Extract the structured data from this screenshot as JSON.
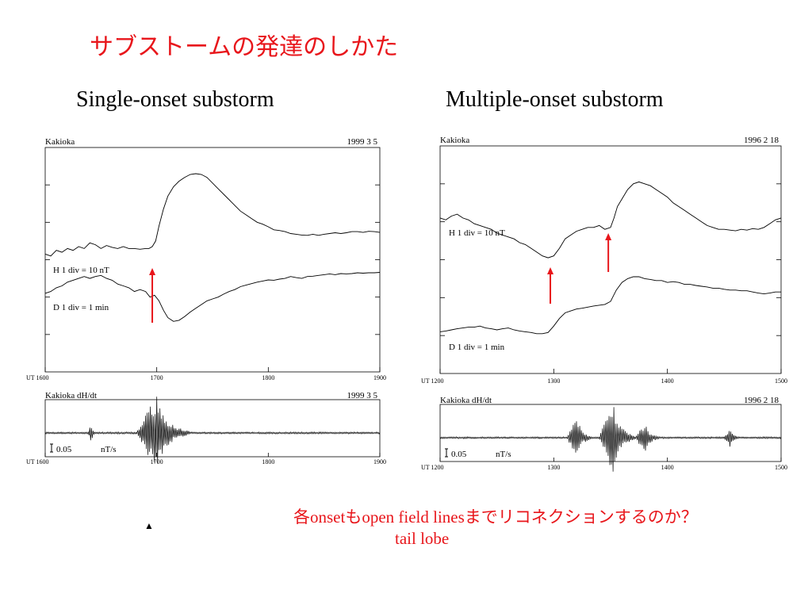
{
  "slide": {
    "title": "サブストームの発達のしかた",
    "note_line1": "各onsetもopen field linesまでリコネクションするのか？",
    "note_line2": "tail lobe",
    "marker": "▲"
  },
  "colors": {
    "onset_arrow": "#e8161b",
    "title": "#e8161b",
    "trace": "#000000"
  },
  "chart_data": [
    {
      "id": "single-onset",
      "type": "line",
      "title": "Single-onset substorm",
      "station": "Kakioka",
      "date": "1999    3    5",
      "x_axis_prefix": "UT",
      "x_ticks": [
        "1600",
        "1700",
        "1800",
        "1900"
      ],
      "xlim": [
        1600,
        1900
      ],
      "ylim": [
        0,
        6
      ],
      "series": [
        {
          "name": "H",
          "label": "H   1 div = 10 nT",
          "x": [
            1600,
            1605,
            1610,
            1615,
            1620,
            1625,
            1630,
            1635,
            1640,
            1645,
            1650,
            1655,
            1660,
            1665,
            1670,
            1675,
            1680,
            1685,
            1690,
            1693,
            1696,
            1699,
            1702,
            1706,
            1710,
            1715,
            1720,
            1725,
            1730,
            1735,
            1740,
            1745,
            1750,
            1755,
            1760,
            1765,
            1770,
            1775,
            1780,
            1785,
            1790,
            1795,
            1800,
            1805,
            1810,
            1815,
            1820,
            1825,
            1830,
            1835,
            1840,
            1845,
            1850,
            1855,
            1860,
            1865,
            1870,
            1875,
            1880,
            1885,
            1890,
            1895,
            1900
          ],
          "values": [
            3.15,
            3.1,
            3.25,
            3.2,
            3.3,
            3.25,
            3.35,
            3.3,
            3.45,
            3.4,
            3.3,
            3.38,
            3.33,
            3.3,
            3.35,
            3.3,
            3.3,
            3.28,
            3.3,
            3.3,
            3.35,
            3.5,
            3.9,
            4.35,
            4.7,
            4.95,
            5.1,
            5.2,
            5.28,
            5.3,
            5.28,
            5.2,
            5.05,
            4.9,
            4.75,
            4.6,
            4.45,
            4.3,
            4.2,
            4.1,
            4.0,
            3.95,
            3.88,
            3.8,
            3.78,
            3.75,
            3.7,
            3.68,
            3.66,
            3.65,
            3.68,
            3.65,
            3.68,
            3.7,
            3.72,
            3.7,
            3.72,
            3.75,
            3.75,
            3.73,
            3.76,
            3.75,
            3.73
          ]
        },
        {
          "name": "D",
          "label": "D   1 div = 1    min",
          "x": [
            1600,
            1605,
            1610,
            1615,
            1620,
            1625,
            1630,
            1635,
            1640,
            1645,
            1650,
            1655,
            1660,
            1665,
            1670,
            1675,
            1680,
            1685,
            1690,
            1694,
            1698,
            1702,
            1706,
            1710,
            1715,
            1720,
            1725,
            1730,
            1735,
            1740,
            1745,
            1750,
            1755,
            1760,
            1765,
            1770,
            1775,
            1780,
            1785,
            1790,
            1795,
            1800,
            1805,
            1810,
            1815,
            1820,
            1825,
            1830,
            1835,
            1840,
            1845,
            1850,
            1855,
            1860,
            1865,
            1870,
            1875,
            1880,
            1885,
            1890,
            1895,
            1900
          ],
          "values": [
            2.1,
            2.15,
            2.25,
            2.3,
            2.4,
            2.45,
            2.5,
            2.55,
            2.5,
            2.55,
            2.58,
            2.5,
            2.45,
            2.35,
            2.3,
            2.25,
            2.15,
            2.2,
            2.15,
            2.0,
            2.05,
            1.9,
            1.65,
            1.45,
            1.35,
            1.38,
            1.48,
            1.6,
            1.7,
            1.8,
            1.9,
            1.95,
            2.0,
            2.08,
            2.15,
            2.2,
            2.28,
            2.32,
            2.36,
            2.4,
            2.43,
            2.46,
            2.45,
            2.48,
            2.5,
            2.55,
            2.52,
            2.5,
            2.55,
            2.56,
            2.58,
            2.6,
            2.62,
            2.6,
            2.63,
            2.62,
            2.63,
            2.65,
            2.64,
            2.65,
            2.65,
            2.66
          ]
        }
      ],
      "onset_arrows_x": [
        1696
      ],
      "dhdt": {
        "label": "Kakioka    dH/dt",
        "date": "1999    3    5",
        "scale_label": "0.05",
        "unit_label": "nT/s",
        "x_ticks": [
          "1600",
          "1700",
          "1800",
          "1900"
        ],
        "bursts": [
          {
            "x": 1641,
            "amp": 0.35,
            "width": 2
          },
          {
            "x": 1700,
            "amp": 1.0,
            "width": 18
          }
        ]
      }
    },
    {
      "id": "multiple-onset",
      "type": "line",
      "title": "Multiple-onset substorm",
      "station": "Kakioka",
      "date": "1996      2    18",
      "x_axis_prefix": "UT",
      "x_ticks": [
        "1200",
        "1300",
        "1400",
        "1500"
      ],
      "xlim": [
        1200,
        1500
      ],
      "ylim": [
        0,
        6
      ],
      "series": [
        {
          "name": "H",
          "label": "H   1 div = 10 nT",
          "x": [
            1200,
            1205,
            1210,
            1215,
            1220,
            1225,
            1230,
            1235,
            1240,
            1245,
            1250,
            1255,
            1260,
            1265,
            1270,
            1275,
            1280,
            1285,
            1290,
            1295,
            1300,
            1305,
            1310,
            1315,
            1320,
            1325,
            1330,
            1335,
            1340,
            1345,
            1350,
            1353,
            1356,
            1360,
            1365,
            1370,
            1375,
            1380,
            1385,
            1390,
            1395,
            1400,
            1405,
            1410,
            1415,
            1420,
            1425,
            1430,
            1435,
            1440,
            1445,
            1450,
            1455,
            1460,
            1465,
            1470,
            1475,
            1480,
            1485,
            1490,
            1495,
            1500
          ],
          "values": [
            4.1,
            4.05,
            4.15,
            4.2,
            4.1,
            4.05,
            3.95,
            3.9,
            3.85,
            3.8,
            3.7,
            3.65,
            3.6,
            3.55,
            3.45,
            3.4,
            3.3,
            3.2,
            3.1,
            3.05,
            3.1,
            3.3,
            3.55,
            3.65,
            3.75,
            3.8,
            3.85,
            3.85,
            3.9,
            3.8,
            3.85,
            4.1,
            4.4,
            4.6,
            4.85,
            5.0,
            5.05,
            5.0,
            4.95,
            4.85,
            4.75,
            4.65,
            4.5,
            4.4,
            4.3,
            4.2,
            4.1,
            4.0,
            3.9,
            3.85,
            3.8,
            3.8,
            3.78,
            3.76,
            3.8,
            3.78,
            3.82,
            3.8,
            3.85,
            3.95,
            4.05,
            4.1
          ]
        },
        {
          "name": "D",
          "label": "D   1 div = 1    min",
          "x": [
            1200,
            1205,
            1210,
            1215,
            1220,
            1225,
            1230,
            1235,
            1240,
            1245,
            1250,
            1255,
            1260,
            1265,
            1270,
            1275,
            1280,
            1285,
            1290,
            1295,
            1300,
            1305,
            1310,
            1315,
            1320,
            1325,
            1330,
            1335,
            1340,
            1345,
            1350,
            1355,
            1360,
            1365,
            1370,
            1375,
            1380,
            1385,
            1390,
            1395,
            1400,
            1405,
            1410,
            1415,
            1420,
            1425,
            1430,
            1435,
            1440,
            1445,
            1450,
            1455,
            1460,
            1465,
            1470,
            1475,
            1480,
            1485,
            1490,
            1495,
            1500
          ],
          "values": [
            1.1,
            1.12,
            1.15,
            1.18,
            1.2,
            1.22,
            1.22,
            1.25,
            1.2,
            1.18,
            1.15,
            1.18,
            1.2,
            1.15,
            1.12,
            1.1,
            1.08,
            1.05,
            1.05,
            1.08,
            1.25,
            1.45,
            1.6,
            1.65,
            1.7,
            1.72,
            1.75,
            1.78,
            1.8,
            1.82,
            1.9,
            2.2,
            2.4,
            2.5,
            2.55,
            2.55,
            2.5,
            2.48,
            2.45,
            2.45,
            2.4,
            2.42,
            2.4,
            2.35,
            2.35,
            2.32,
            2.3,
            2.28,
            2.25,
            2.25,
            2.22,
            2.2,
            2.2,
            2.18,
            2.18,
            2.15,
            2.12,
            2.1,
            2.12,
            2.15,
            2.15
          ]
        }
      ],
      "onset_arrows_x": [
        1297,
        1348
      ],
      "dhdt": {
        "label": "Kakioka    dH/dt",
        "date": "1996      2    18",
        "scale_label": "0.05",
        "unit_label": "nT/s",
        "x_ticks": [
          "1200",
          "1300",
          "1400",
          "1500"
        ],
        "bursts": [
          {
            "x": 1320,
            "amp": 0.6,
            "width": 8
          },
          {
            "x": 1352,
            "amp": 1.0,
            "width": 12
          },
          {
            "x": 1380,
            "amp": 0.4,
            "width": 8
          },
          {
            "x": 1455,
            "amp": 0.25,
            "width": 5
          }
        ]
      }
    }
  ]
}
